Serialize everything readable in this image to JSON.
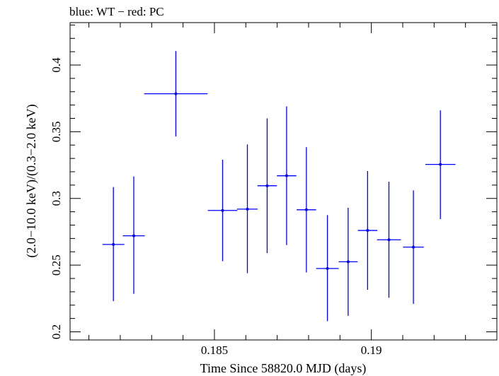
{
  "chart_data": {
    "type": "scatter",
    "title": "blue: WT − red: PC",
    "xlabel": "Time Since 58820.0 MJD (days)",
    "ylabel": "(2.0−10.0 keV)/(0.3−2.0 keV)",
    "xlim": [
      0.1804,
      0.194
    ],
    "ylim": [
      0.1939,
      0.4318
    ],
    "xticks": [
      {
        "value": 0.185,
        "label": "0.185"
      },
      {
        "value": 0.19,
        "label": "0.19"
      }
    ],
    "yticks": [
      {
        "value": 0.2,
        "label": "0.2"
      },
      {
        "value": 0.25,
        "label": "0.25"
      },
      {
        "value": 0.3,
        "label": "0.3"
      },
      {
        "value": 0.35,
        "label": "0.35"
      },
      {
        "value": 0.4,
        "label": "0.4"
      }
    ],
    "series": [
      {
        "name": "WT",
        "color": "#0000ff",
        "points": [
          {
            "x": 0.18178,
            "y": 0.2655,
            "xerr": 0.00035,
            "ylo": 0.223,
            "yhi": 0.3085
          },
          {
            "x": 0.18243,
            "y": 0.272,
            "xerr": 0.00035,
            "ylo": 0.2285,
            "yhi": 0.3165
          },
          {
            "x": 0.18377,
            "y": 0.3785,
            "xerr": 0.00101,
            "ylo": 0.3465,
            "yhi": 0.4105
          },
          {
            "x": 0.18526,
            "y": 0.291,
            "xerr": 0.00047,
            "ylo": 0.253,
            "yhi": 0.329
          },
          {
            "x": 0.18605,
            "y": 0.292,
            "xerr": 0.00033,
            "ylo": 0.244,
            "yhi": 0.3405
          },
          {
            "x": 0.18668,
            "y": 0.3095,
            "xerr": 0.00031,
            "ylo": 0.259,
            "yhi": 0.36
          },
          {
            "x": 0.1873,
            "y": 0.317,
            "xerr": 0.00031,
            "ylo": 0.265,
            "yhi": 0.369
          },
          {
            "x": 0.18793,
            "y": 0.2915,
            "xerr": 0.00031,
            "ylo": 0.2445,
            "yhi": 0.3385
          },
          {
            "x": 0.1886,
            "y": 0.2475,
            "xerr": 0.00036,
            "ylo": 0.208,
            "yhi": 0.2875
          },
          {
            "x": 0.18926,
            "y": 0.2525,
            "xerr": 0.0003,
            "ylo": 0.212,
            "yhi": 0.293
          },
          {
            "x": 0.18988,
            "y": 0.276,
            "xerr": 0.00031,
            "ylo": 0.2315,
            "yhi": 0.3205
          },
          {
            "x": 0.19056,
            "y": 0.269,
            "xerr": 0.00038,
            "ylo": 0.2255,
            "yhi": 0.3125
          },
          {
            "x": 0.19134,
            "y": 0.2635,
            "xerr": 0.00033,
            "ylo": 0.221,
            "yhi": 0.306
          },
          {
            "x": 0.1922,
            "y": 0.3255,
            "xerr": 0.00048,
            "ylo": 0.2845,
            "yhi": 0.366
          }
        ]
      }
    ]
  }
}
